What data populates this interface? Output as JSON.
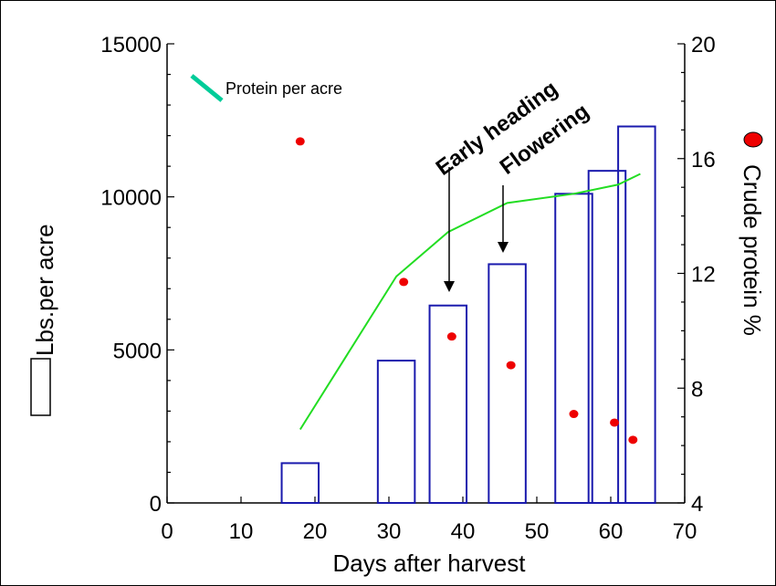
{
  "chart_data": {
    "type": "bar",
    "xlabel": "Days after harvest",
    "ylabel": "Lbs.per acre",
    "y2label": "Crude protein %",
    "xlim": [
      0,
      70
    ],
    "ylim": [
      0,
      15000
    ],
    "y2lim": [
      4,
      20
    ],
    "xticks": [
      "0",
      "10",
      "20",
      "30",
      "40",
      "50",
      "60",
      "70"
    ],
    "yticks": [
      "0",
      "5000",
      "10000",
      "15000"
    ],
    "y2ticks": [
      "4",
      "8",
      "12",
      "16",
      "20"
    ],
    "grid": false,
    "legend_text": "Protein per acre",
    "colors": {
      "bars": "#1a1aad",
      "line": "#22dd22",
      "dots": "#ee0000",
      "legend_line": "#00cc99"
    },
    "bars": {
      "x": [
        18,
        31,
        38,
        46,
        55,
        59.5,
        63.5
      ],
      "width": 5,
      "values": [
        1300,
        4650,
        6450,
        7800,
        10100,
        10850,
        12300
      ]
    },
    "line": {
      "name": "Protein per acre",
      "x": [
        18,
        31,
        38,
        46,
        55,
        61,
        64
      ],
      "values": [
        2400,
        7400,
        8850,
        9800,
        10100,
        10400,
        10750
      ]
    },
    "dots": {
      "x": [
        18,
        32,
        38.5,
        46.5,
        55,
        60.5,
        63
      ],
      "values": [
        16.6,
        11.7,
        9.8,
        8.8,
        7.1,
        6.8,
        6.2
      ]
    },
    "annotations": [
      {
        "text": "Early heading",
        "x": 38
      },
      {
        "text": "Flowering",
        "x": 46
      }
    ]
  }
}
